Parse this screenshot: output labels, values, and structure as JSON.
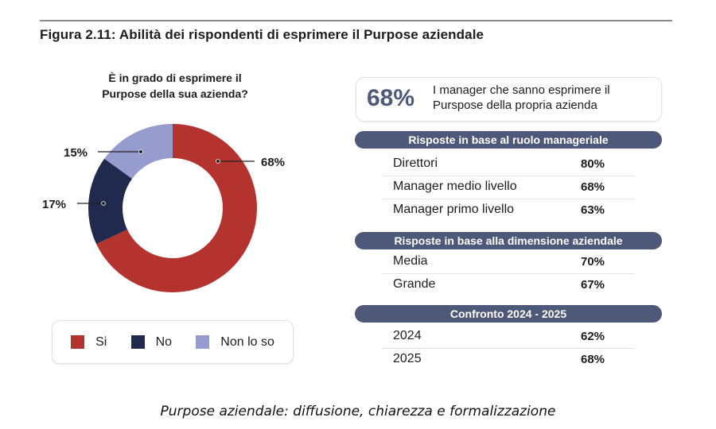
{
  "figure_title": "Figura 2.11: Abilità dei rispondenti di esprimere il Purpose aziendale",
  "chart_data": {
    "type": "pie",
    "variant": "donut",
    "title": "È in grado di esprimere il Purpose della sua azienda?",
    "title_lines": [
      "È in grado di esprimere il",
      "Purpose della sua azienda?"
    ],
    "categories": [
      "Si",
      "No",
      "Non lo so"
    ],
    "values": [
      68,
      17,
      15
    ],
    "labels": [
      "68%",
      "17%",
      "15%"
    ],
    "colors": [
      "#b5332e",
      "#1f2a4e",
      "#979ccf"
    ],
    "legend_position": "bottom"
  },
  "legend": [
    {
      "label": "Si",
      "color": "#b5332e"
    },
    {
      "label": "No",
      "color": "#1f2a4e"
    },
    {
      "label": "Non lo so",
      "color": "#979ccf"
    }
  ],
  "kpi": {
    "value": "68%",
    "text_line1": "I manager che sanno esprimere il",
    "text_line2": "Purspose della propria azienda"
  },
  "sections": [
    {
      "header": "Risposte in base al ruolo manageriale",
      "rows": [
        {
          "name": "Direttori",
          "value": "80%"
        },
        {
          "name": "Manager medio livello",
          "value": "68%"
        },
        {
          "name": "Manager primo livello",
          "value": "63%"
        }
      ]
    },
    {
      "header": "Risposte in base alla dimensione aziendale",
      "rows": [
        {
          "name": "Media",
          "value": "70%"
        },
        {
          "name": "Grande",
          "value": "67%"
        }
      ]
    },
    {
      "header": "Confronto 2024 - 2025",
      "rows": [
        {
          "name": "2024",
          "value": "62%"
        },
        {
          "name": "2025",
          "value": "68%"
        }
      ]
    }
  ],
  "caption": "Purpose aziendale: diffusione, chiarezza e formalizzazione",
  "accent_color": "#4e5878"
}
